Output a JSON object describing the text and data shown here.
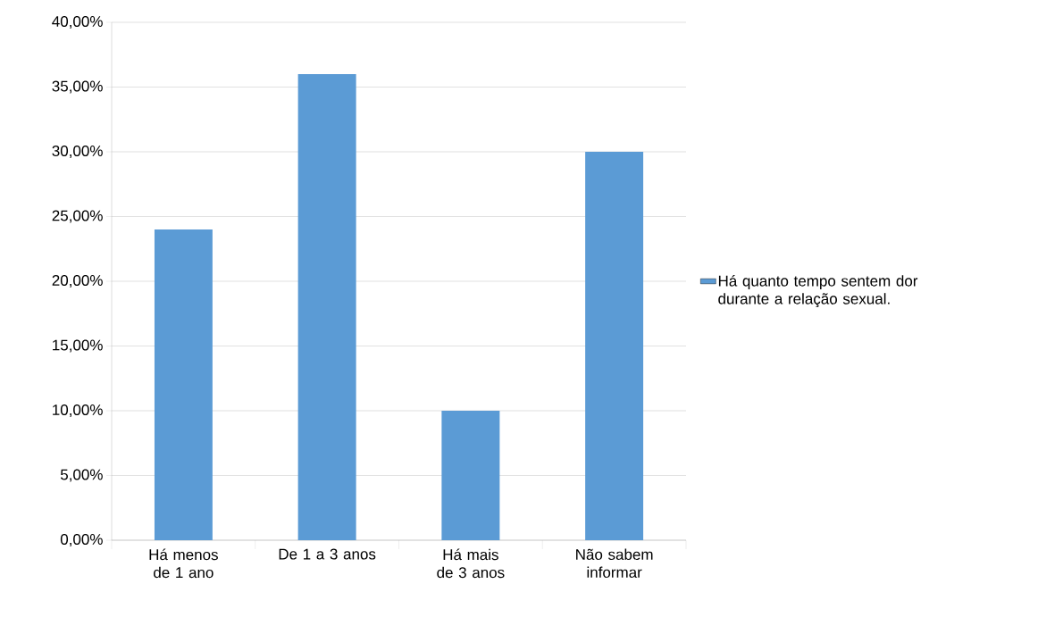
{
  "chart_data": {
    "type": "bar",
    "categories": [
      "Há menos de 1 ano",
      "De 1 a 3 anos",
      "Há mais de 3 anos",
      "Não sabem informar"
    ],
    "series": [
      {
        "name": "Há quanto tempo sentem dor durante a relação sexual.",
        "color": "#5b9bd5",
        "values": [
          24,
          36,
          10,
          30
        ]
      }
    ],
    "ylim": [
      0,
      40
    ],
    "yticks": [
      {
        "value": 0,
        "label": "0,00%"
      },
      {
        "value": 5,
        "label": "5,00%"
      },
      {
        "value": 10,
        "label": "10,00%"
      },
      {
        "value": 15,
        "label": "15,00%"
      },
      {
        "value": 20,
        "label": "20,00%"
      },
      {
        "value": 25,
        "label": "25,00%"
      },
      {
        "value": 30,
        "label": "30,00%"
      },
      {
        "value": 35,
        "label": "35,00%"
      },
      {
        "value": 40,
        "label": "40,00%"
      }
    ],
    "grid": "y",
    "legend": "right"
  }
}
